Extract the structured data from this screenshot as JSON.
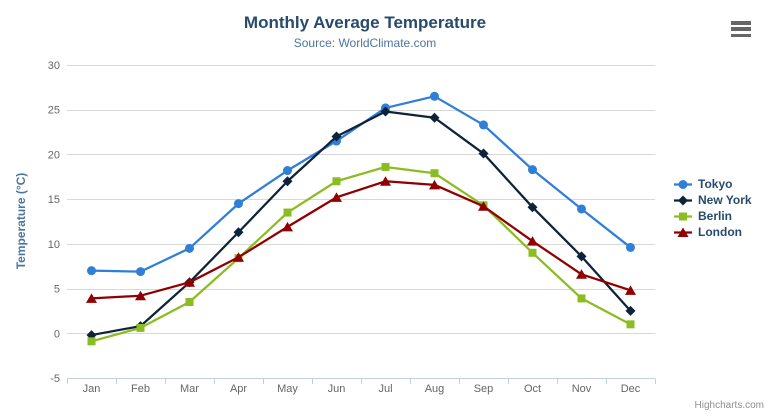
{
  "header": {
    "title": "Monthly Average Temperature",
    "subtitle": "Source: WorldClimate.com",
    "menu_icon": "hamburger-icon"
  },
  "credit": "Highcharts.com",
  "colors": {
    "title": "#274b6d",
    "subtitle": "#4d759e",
    "axis_title": "#4d759e",
    "axis_labels": "#666666",
    "grid_line": "#d8d8d8",
    "axis_line": "#c0d0e0",
    "legend_text": "#274b6d",
    "menu_icon": "#666666",
    "credit_text": "#909090",
    "background": "#ffffff"
  },
  "chart_data": {
    "type": "line",
    "title": "Monthly Average Temperature",
    "subtitle": "Source: WorldClimate.com",
    "categories": [
      "Jan",
      "Feb",
      "Mar",
      "Apr",
      "May",
      "Jun",
      "Jul",
      "Aug",
      "Sep",
      "Oct",
      "Nov",
      "Dec"
    ],
    "xlabel": "",
    "ylabel": "Temperature (°C)",
    "ylim": [
      -5,
      30
    ],
    "ytick_interval": 5,
    "grid": true,
    "legend_position": "right",
    "series": [
      {
        "name": "Tokyo",
        "color": "#2f7ed8",
        "marker": "circle",
        "values": [
          7.0,
          6.9,
          9.5,
          14.5,
          18.2,
          21.5,
          25.2,
          26.5,
          23.3,
          18.3,
          13.9,
          9.6
        ]
      },
      {
        "name": "New York",
        "color": "#0d233a",
        "marker": "diamond",
        "values": [
          -0.2,
          0.8,
          5.7,
          11.3,
          17.0,
          22.0,
          24.8,
          24.1,
          20.1,
          14.1,
          8.6,
          2.5
        ]
      },
      {
        "name": "Berlin",
        "color": "#8bbc21",
        "marker": "square",
        "values": [
          -0.9,
          0.6,
          3.5,
          8.4,
          13.5,
          17.0,
          18.6,
          17.9,
          14.3,
          9.0,
          3.9,
          1.0
        ]
      },
      {
        "name": "London",
        "color": "#910000",
        "marker": "triangle",
        "values": [
          3.9,
          4.2,
          5.7,
          8.5,
          11.9,
          15.2,
          17.0,
          16.6,
          14.2,
          10.3,
          6.6,
          4.8
        ]
      }
    ]
  }
}
